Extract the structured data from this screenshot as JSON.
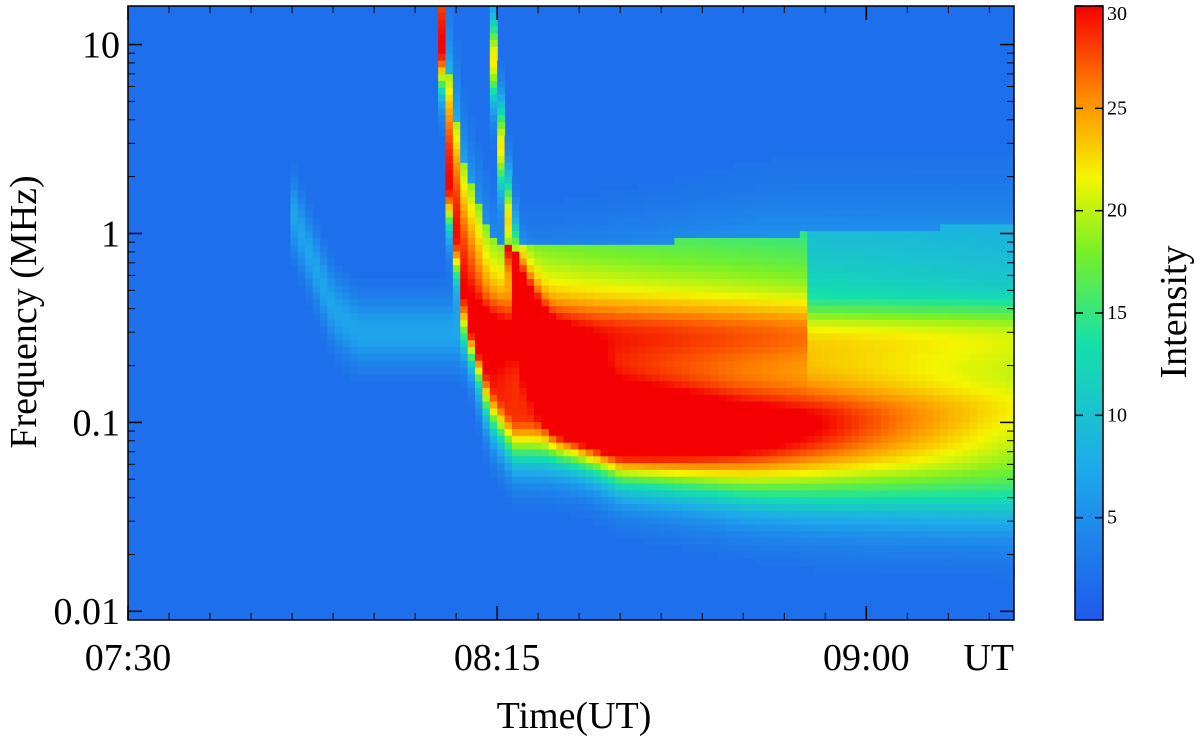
{
  "chart_data": {
    "type": "heatmap",
    "title": "",
    "xlabel": "Time(UT)",
    "ylabel": "Frequency (MHz)",
    "colorbar_label": "Intensity",
    "x_axis": {
      "range": [
        "07:30",
        "09:18"
      ],
      "ticks": [
        {
          "value": "07:30",
          "label": "07:30"
        },
        {
          "value": "08:15",
          "label": "08:15"
        },
        {
          "value": "09:00",
          "label": "09:00"
        }
      ],
      "end_label": "UT"
    },
    "y_axis": {
      "scale": "log",
      "range": [
        0.009,
        16
      ],
      "ticks": [
        {
          "value": 0.01,
          "label": "0.01"
        },
        {
          "value": 0.1,
          "label": "0.1"
        },
        {
          "value": 1,
          "label": "1"
        },
        {
          "value": 10,
          "label": "10"
        }
      ]
    },
    "colorbar": {
      "range": [
        0,
        30
      ],
      "ticks": [
        {
          "value": 5,
          "label": "5"
        },
        {
          "value": 10,
          "label": "10"
        },
        {
          "value": 15,
          "label": "15"
        },
        {
          "value": 20,
          "label": "20"
        },
        {
          "value": 25,
          "label": "25"
        },
        {
          "value": 30,
          "label": "30"
        }
      ],
      "colormap": "rainbow"
    },
    "background_intensity": 2,
    "features": [
      {
        "kind": "type-III-burst",
        "onset": "08:08",
        "drift_to_freq_mhz": 0.12,
        "peak_intensity": 30,
        "spine": [
          [
            "08:08",
            16
          ],
          [
            "08:09",
            2
          ],
          [
            "08:11",
            0.5
          ],
          [
            "08:14",
            0.17
          ],
          [
            "08:17",
            0.11
          ],
          [
            "08:30",
            0.11
          ],
          [
            "08:45",
            0.12
          ],
          [
            "09:00",
            0.13
          ],
          [
            "09:17",
            0.14
          ]
        ]
      },
      {
        "kind": "type-III-burst",
        "onset": "08:14",
        "drift_to_freq_mhz": 0.07,
        "peak_intensity": 22,
        "spine": [
          [
            "08:14",
            16
          ],
          [
            "08:16",
            1.5
          ],
          [
            "08:18",
            0.4
          ],
          [
            "08:22",
            0.15
          ],
          [
            "08:30",
            0.08
          ],
          [
            "08:45",
            0.065
          ],
          [
            "09:00",
            0.06
          ],
          [
            "09:17",
            0.055
          ]
        ]
      },
      {
        "kind": "faint-burst",
        "onset": "07:50",
        "drift_to_freq_mhz": 0.35,
        "peak_intensity": 7,
        "spine": [
          [
            "07:50",
            1.3
          ],
          [
            "07:52",
            0.8
          ],
          [
            "07:55",
            0.4
          ],
          [
            "07:58",
            0.3
          ]
        ]
      }
    ],
    "grid": false
  }
}
